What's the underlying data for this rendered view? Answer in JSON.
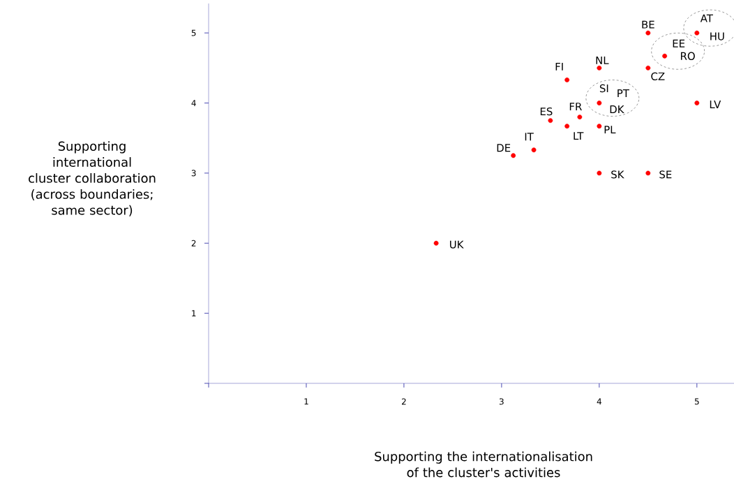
{
  "chart_data": {
    "type": "scatter",
    "xlabel": "Supporting the internationalisation of the cluster's activities",
    "ylabel": "Supporting international cluster collaboration (across boundaries; same sector)",
    "color": "#ff0000",
    "marker": "circle",
    "x": [
      4.5,
      5,
      4.67,
      4,
      4.5,
      3.67,
      4,
      5,
      3.5,
      3.8,
      3.67,
      4,
      3.33,
      3.12,
      4,
      4.5,
      2.33
    ],
    "values": [
      5,
      5,
      4.67,
      4.5,
      4.5,
      4.33,
      4,
      4,
      3.75,
      3.8,
      3.67,
      3.67,
      3.33,
      3.25,
      3,
      3,
      2
    ],
    "xlim": [
      0,
      5.38
    ],
    "ylim": [
      0,
      5.42
    ],
    "xticks": [
      {
        "value": 0,
        "label": null
      },
      1,
      2,
      3,
      4,
      5
    ],
    "yticks": [
      {
        "value": 0,
        "label": null
      },
      1,
      2,
      3,
      4,
      5
    ],
    "annotations": [
      {
        "text": "BE",
        "x": 4.5,
        "y": 5
      },
      {
        "text": "AT",
        "x": 5,
        "y": 5
      },
      {
        "text": "HU",
        "x": 5,
        "y": 5
      },
      {
        "text": "EE",
        "x": 4.67,
        "y": 4.67
      },
      {
        "text": "RO",
        "x": 4.67,
        "y": 4.67
      },
      {
        "text": "NL",
        "x": 4,
        "y": 4.5
      },
      {
        "text": "CZ",
        "x": 4.5,
        "y": 4.5
      },
      {
        "text": "FI",
        "x": 3.67,
        "y": 4.33
      },
      {
        "text": "SI",
        "x": 4,
        "y": 4
      },
      {
        "text": "PT",
        "x": 4,
        "y": 4
      },
      {
        "text": "DK",
        "x": 4,
        "y": 4
      },
      {
        "text": "LV",
        "x": 5,
        "y": 4
      },
      {
        "text": "ES",
        "x": 3.5,
        "y": 3.75
      },
      {
        "text": "FR",
        "x": 3.8,
        "y": 3.8
      },
      {
        "text": "LT",
        "x": 3.67,
        "y": 3.67
      },
      {
        "text": "PL",
        "x": 4,
        "y": 3.67
      },
      {
        "text": "IT",
        "x": 3.33,
        "y": 3.33
      },
      {
        "text": "DE",
        "x": 3.12,
        "y": 3.25
      },
      {
        "text": "SK",
        "x": 4,
        "y": 3
      },
      {
        "text": "SE",
        "x": 4.5,
        "y": 3
      },
      {
        "text": "UK",
        "x": 2.33,
        "y": 2
      }
    ]
  }
}
